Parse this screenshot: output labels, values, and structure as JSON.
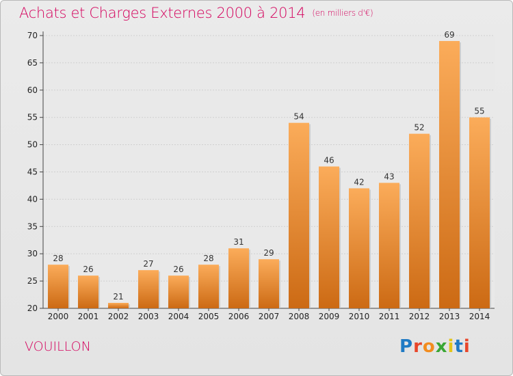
{
  "title": "Achats et Charges Externes 2000 à 2014",
  "subtitle": "(en milliers d'€)",
  "location": "VOUILLON",
  "logo": {
    "letters": [
      "P",
      "r",
      "o",
      "x",
      "i",
      "t",
      "i"
    ],
    "colors": [
      "#1f7ac4",
      "#e8462a",
      "#f28c1e",
      "#3aa635",
      "#e2c51a",
      "#1f7ac4",
      "#e8462a"
    ]
  },
  "colors": {
    "bar_light": "#fbac5a",
    "bar_dark": "#cc6a14",
    "title": "#d4005c"
  },
  "chart_data": {
    "type": "bar",
    "categories": [
      "2000",
      "2001",
      "2002",
      "2003",
      "2004",
      "2005",
      "2006",
      "2007",
      "2008",
      "2009",
      "2010",
      "2011",
      "2012",
      "2013",
      "2014"
    ],
    "values": [
      28,
      26,
      21,
      27,
      26,
      28,
      31,
      29,
      54,
      46,
      42,
      43,
      52,
      69,
      55
    ],
    "ylim": [
      20,
      70
    ],
    "yticks": [
      20,
      25,
      30,
      35,
      40,
      45,
      50,
      55,
      60,
      65,
      70
    ],
    "grid": true
  }
}
